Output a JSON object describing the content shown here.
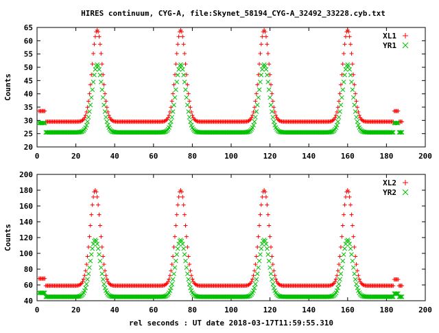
{
  "title": "HIRES continuum, CYG-A, file:Skynet_58194_CYG-A_32492_33228.cyb.txt",
  "x_axis_label": "rel seconds : UT date 2018-03-17T11:59:55.310",
  "colors": {
    "red": "#ff0000",
    "green": "#00c000",
    "frame": "#000000"
  },
  "chart_data": [
    {
      "type": "scatter",
      "title": "",
      "xlabel": "",
      "ylabel": "Counts",
      "xlim": [
        0,
        200
      ],
      "ylim": [
        20,
        65
      ],
      "xticks": [
        0,
        20,
        40,
        60,
        80,
        100,
        120,
        140,
        160,
        180,
        200
      ],
      "yticks": [
        20,
        25,
        30,
        35,
        40,
        45,
        50,
        55,
        60,
        65
      ],
      "legend": "top-right",
      "peak_centers": [
        31,
        74,
        117,
        160
      ],
      "series": [
        {
          "name": "XL1",
          "marker": "plus",
          "color": "#ff0000",
          "baseline": 29.5,
          "peak": 64.0,
          "step_ranges": [
            [
              1,
              4,
              33.5
            ],
            [
              184,
              186,
              33.5
            ]
          ]
        },
        {
          "name": "YR1",
          "marker": "cross",
          "color": "#00c000",
          "baseline": 25.5,
          "peak": 51.0,
          "step_ranges": [
            [
              1,
              4,
              29.0
            ],
            [
              184,
              186,
              29.0
            ]
          ]
        }
      ]
    },
    {
      "type": "scatter",
      "title": "",
      "xlabel": "rel seconds : UT date 2018-03-17T11:59:55.310",
      "ylabel": "Counts",
      "xlim": [
        0,
        200
      ],
      "ylim": [
        40,
        200
      ],
      "xticks": [
        0,
        20,
        40,
        60,
        80,
        100,
        120,
        140,
        160,
        180,
        200
      ],
      "yticks": [
        40,
        60,
        80,
        100,
        120,
        140,
        160,
        180,
        200
      ],
      "legend": "top-right",
      "peak_centers": [
        30,
        74,
        117,
        160
      ],
      "series": [
        {
          "name": "XL2",
          "marker": "plus",
          "color": "#ff0000",
          "baseline": 59.0,
          "peak": 180.0,
          "step_ranges": [
            [
              1,
              4,
              68.0
            ],
            [
              184,
              186,
              67.0
            ]
          ]
        },
        {
          "name": "YR2",
          "marker": "cross",
          "color": "#00c000",
          "baseline": 45.0,
          "peak": 117.0,
          "step_ranges": [
            [
              1,
              4,
              50.0
            ],
            [
              184,
              186,
              49.0
            ]
          ]
        }
      ]
    }
  ]
}
